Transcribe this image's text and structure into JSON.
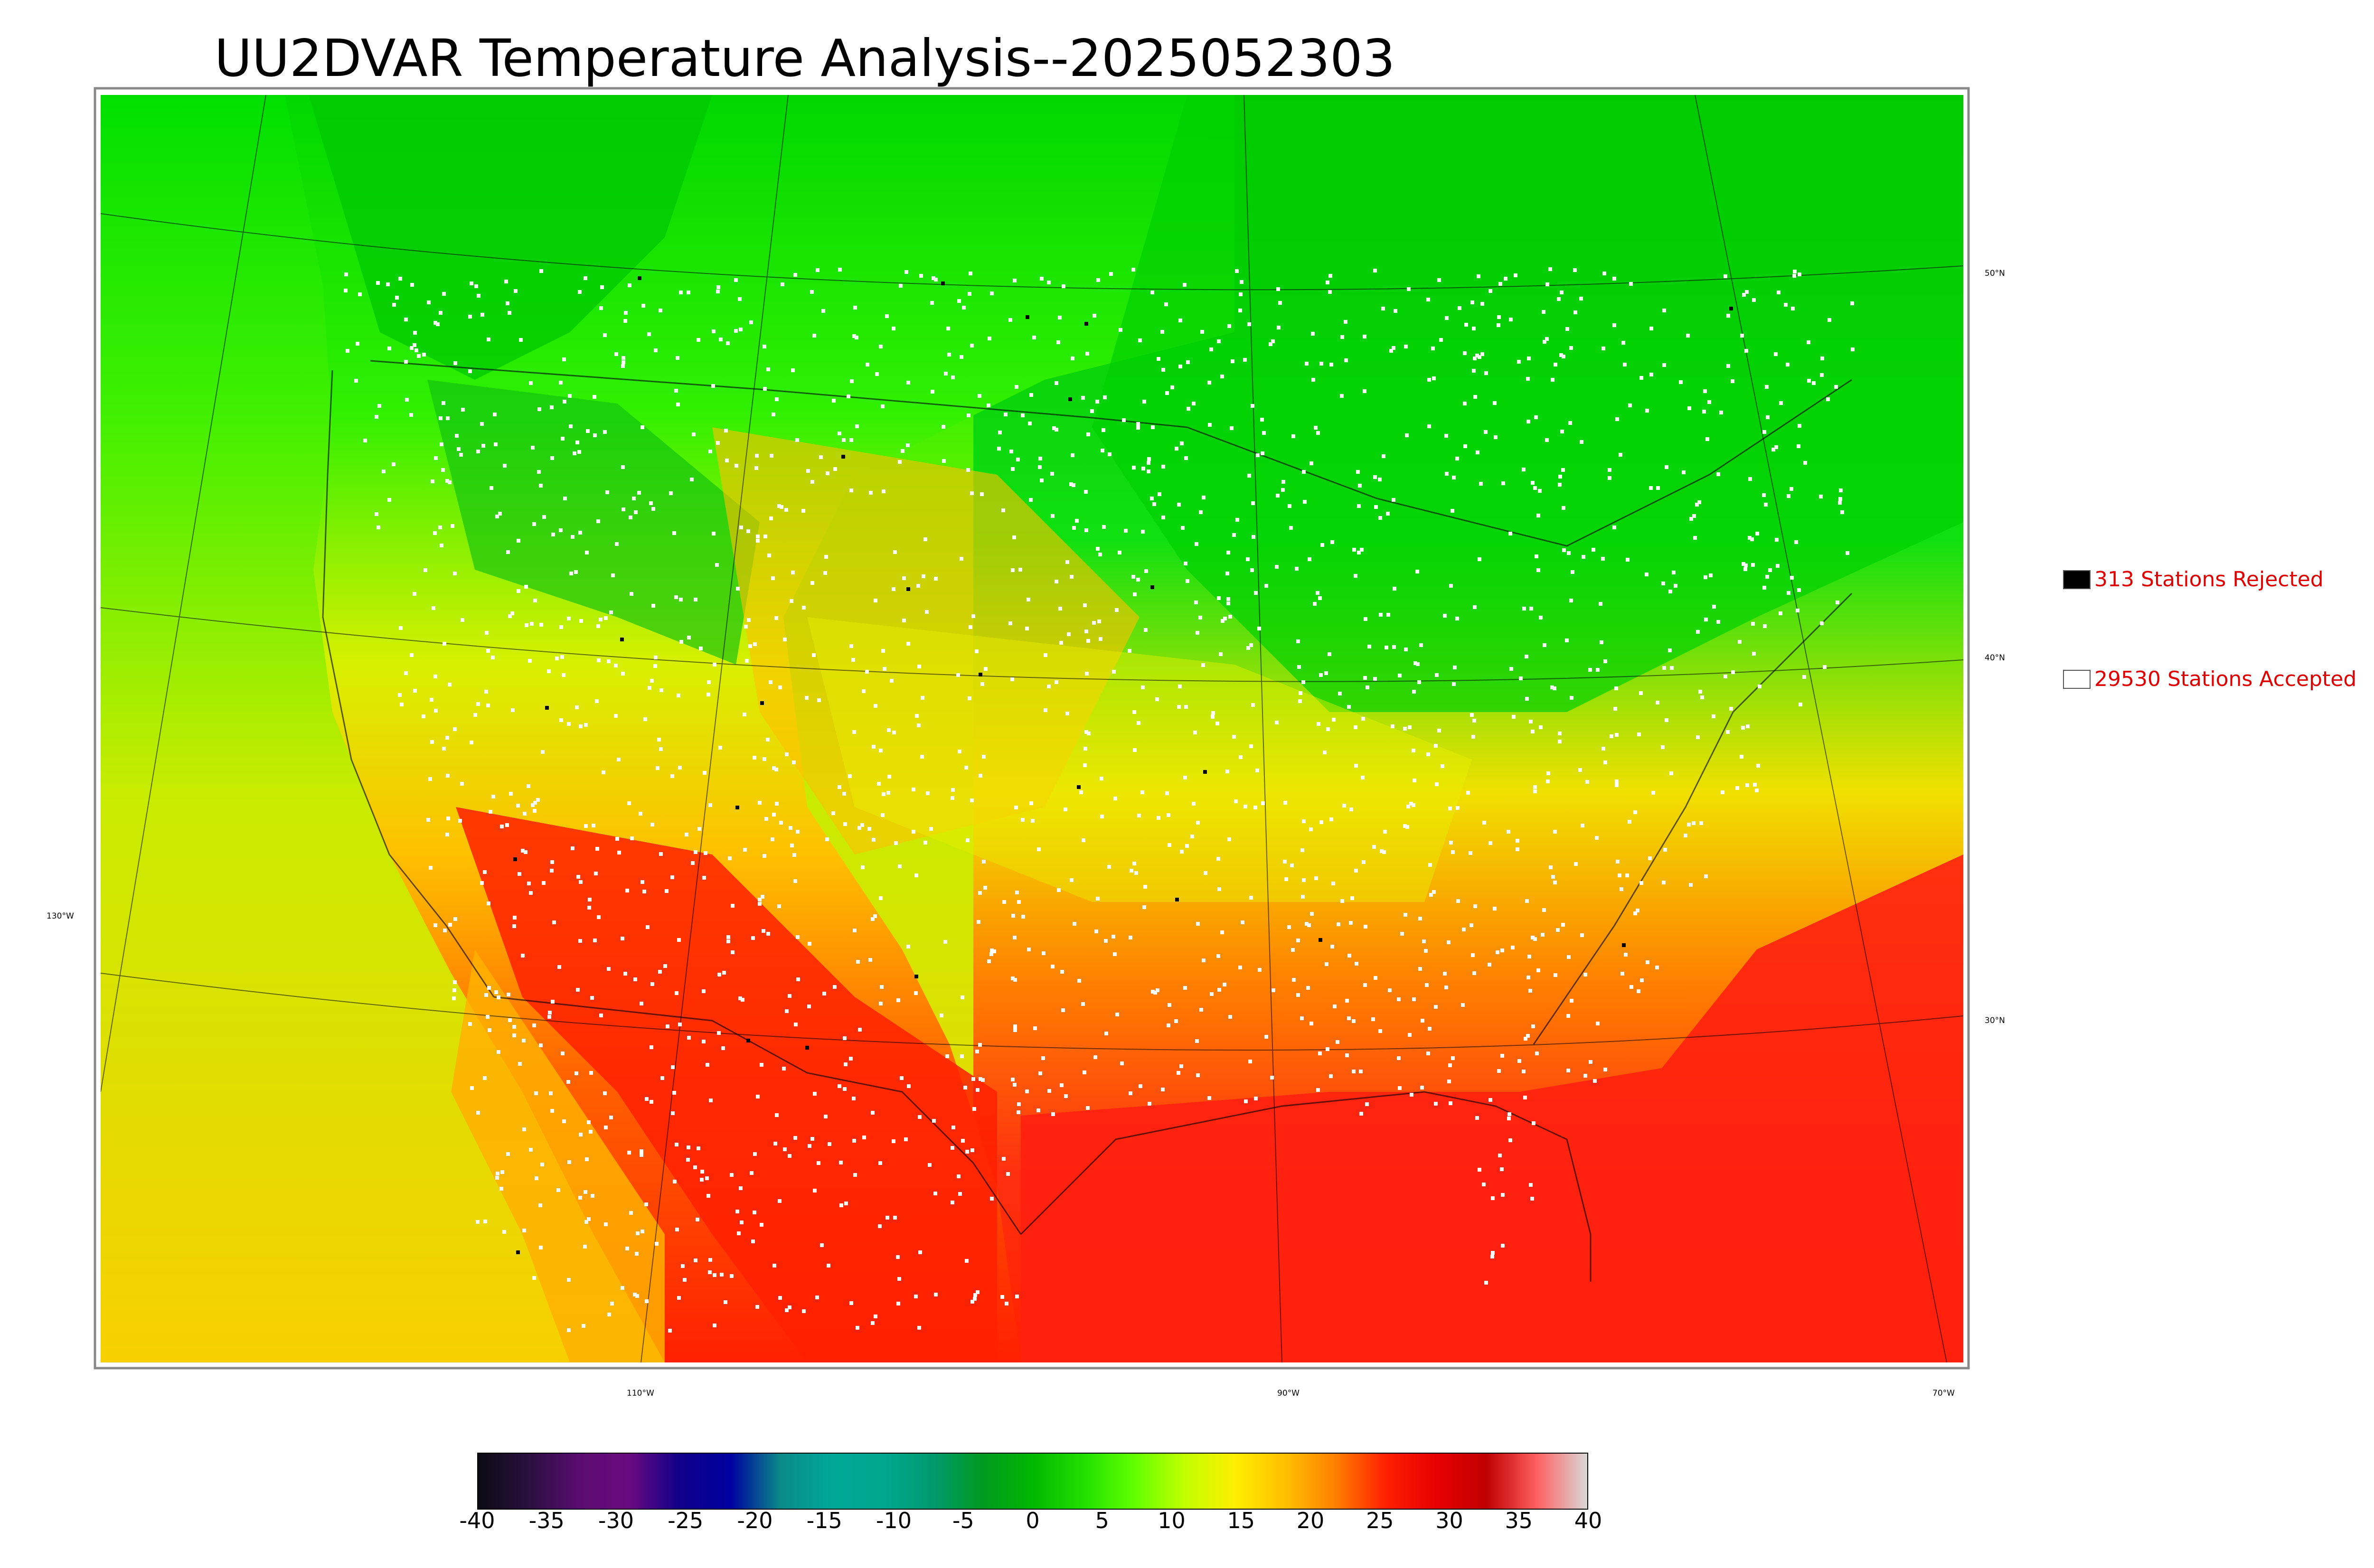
{
  "title": "UU2DVAR Temperature Analysis--2025052303",
  "legend": {
    "rejected": {
      "label": "313 Stations Rejected",
      "color": "#000000"
    },
    "accepted": {
      "label": "29530 Stations Accepted",
      "color": "#ffffff"
    }
  },
  "latitude_labels": [
    "50°N",
    "40°N",
    "30°N"
  ],
  "longitude_labels": [
    "130°W",
    "110°W",
    "90°W",
    "70°W"
  ],
  "colorbar": {
    "ticks": [
      "-40",
      "-35",
      "-30",
      "-25",
      "-20",
      "-15",
      "-10",
      "-5",
      "0",
      "5",
      "10",
      "15",
      "20",
      "25",
      "30",
      "35",
      "40"
    ],
    "range": [
      -40,
      40
    ],
    "colors": [
      "#0b0b14",
      "#2a1040",
      "#5a0c70",
      "#6a0a80",
      "#10008a",
      "#0000a0",
      "#0a8a8a",
      "#00a898",
      "#00a890",
      "#009a70",
      "#009a20",
      "#00b800",
      "#20e000",
      "#60ff00",
      "#c0ff00",
      "#ffee00",
      "#ffc000",
      "#ff8000",
      "#ff2000",
      "#e80000",
      "#c00000",
      "#ff6060",
      "#d8d8d8"
    ]
  },
  "colors": {
    "cold_area": "#00c800",
    "mild_area": "#d8f000",
    "warm_area": "#ffb000",
    "hot_area": "#ff2000",
    "ocean_west": "#c8ec00",
    "ocean_south": "#ff3010"
  }
}
